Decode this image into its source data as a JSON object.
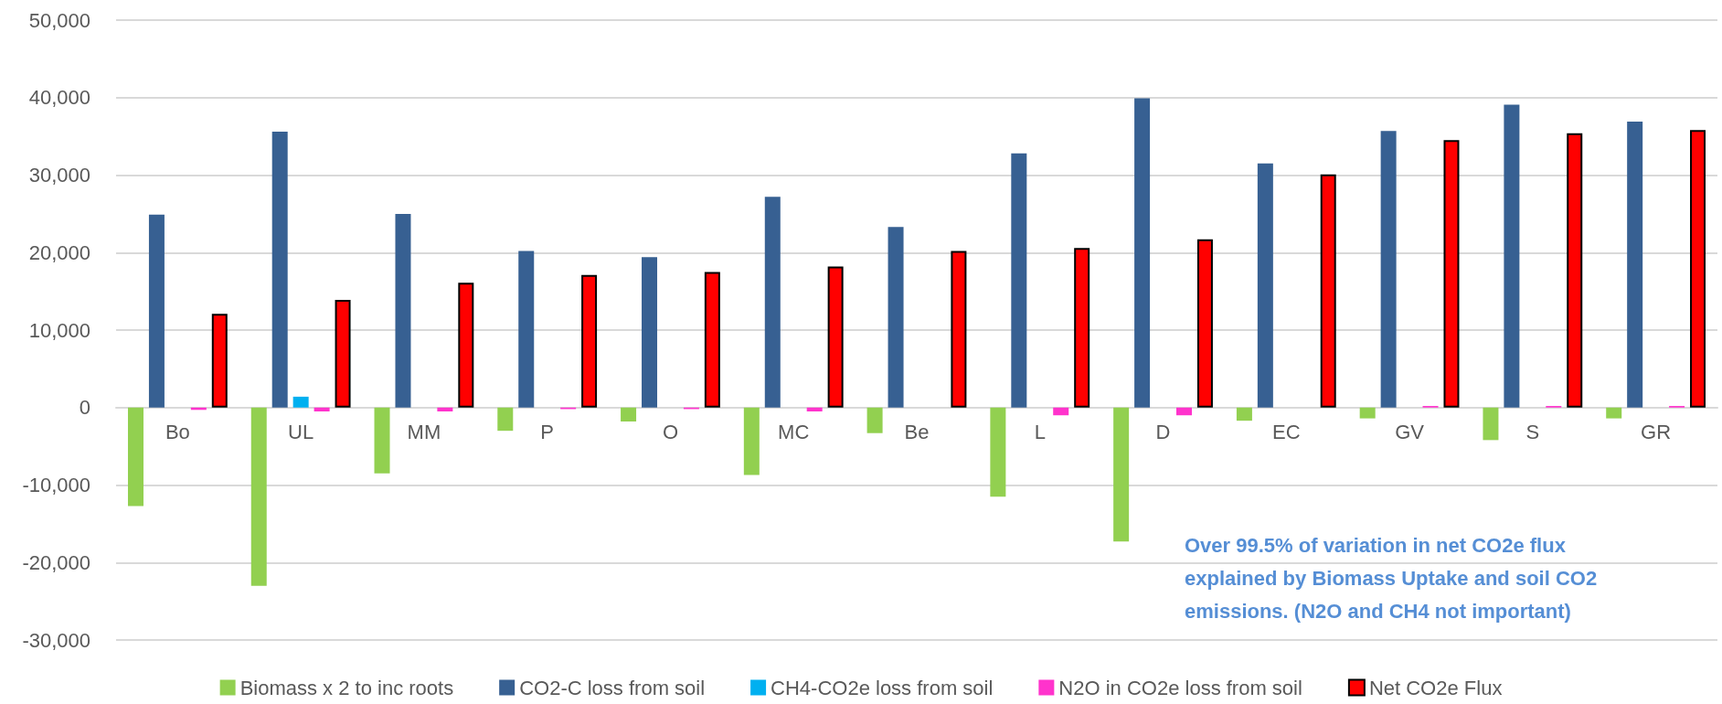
{
  "chart_data": {
    "type": "bar",
    "categories": [
      "Bo",
      "UL",
      "MM",
      "P",
      "O",
      "MC",
      "Be",
      "L",
      "D",
      "EC",
      "GV",
      "S",
      "GR"
    ],
    "series": [
      {
        "name": "Biomass x 2 to inc roots",
        "color": "#92d050",
        "values": [
          -12700,
          -23000,
          -8500,
          -3000,
          -1800,
          -8700,
          -3300,
          -11500,
          -17300,
          -1700,
          -1400,
          -4200,
          -1400
        ]
      },
      {
        "name": "CO2-C loss from soil",
        "color": "#376092",
        "values": [
          24900,
          35600,
          25000,
          20200,
          19400,
          27200,
          23300,
          32800,
          39900,
          31500,
          35700,
          39100,
          36900
        ]
      },
      {
        "name": "CH4-CO2e loss from soil",
        "color": "#00b0f0",
        "values": [
          null,
          1400,
          null,
          null,
          null,
          null,
          null,
          null,
          null,
          null,
          null,
          null,
          null
        ]
      },
      {
        "name": "N2O in CO2e loss from soil",
        "color": "#ff33cc",
        "values": [
          -300,
          -500,
          -500,
          -200,
          -200,
          -500,
          null,
          -1000,
          -1000,
          null,
          200,
          200,
          200
        ]
      },
      {
        "name": "Net CO2e Flux",
        "color": "#ff0000",
        "values": [
          12100,
          13900,
          16100,
          17100,
          17500,
          18200,
          20200,
          20600,
          21700,
          30100,
          34500,
          35400,
          35800
        ]
      }
    ],
    "ylim": [
      -30000,
      50000
    ],
    "yticks": [
      {
        "value": -30000,
        "label": "-30,000"
      },
      {
        "value": -20000,
        "label": "-20,000"
      },
      {
        "value": -10000,
        "label": "-10,000"
      },
      0,
      {
        "value": 10000,
        "label": "10,000"
      },
      {
        "value": 20000,
        "label": "20,000"
      },
      {
        "value": 30000,
        "label": "30,000"
      },
      {
        "value": 40000,
        "label": "40,000"
      },
      {
        "value": 50000,
        "label": "50,000"
      }
    ],
    "grid": "y",
    "legend": "bottom",
    "annotations": [
      "Over 99.5% of variation in net CO2e flux\nexplained by Biomass Uptake and soil CO2\nemissions. (N2O and CH4 not important)"
    ]
  }
}
